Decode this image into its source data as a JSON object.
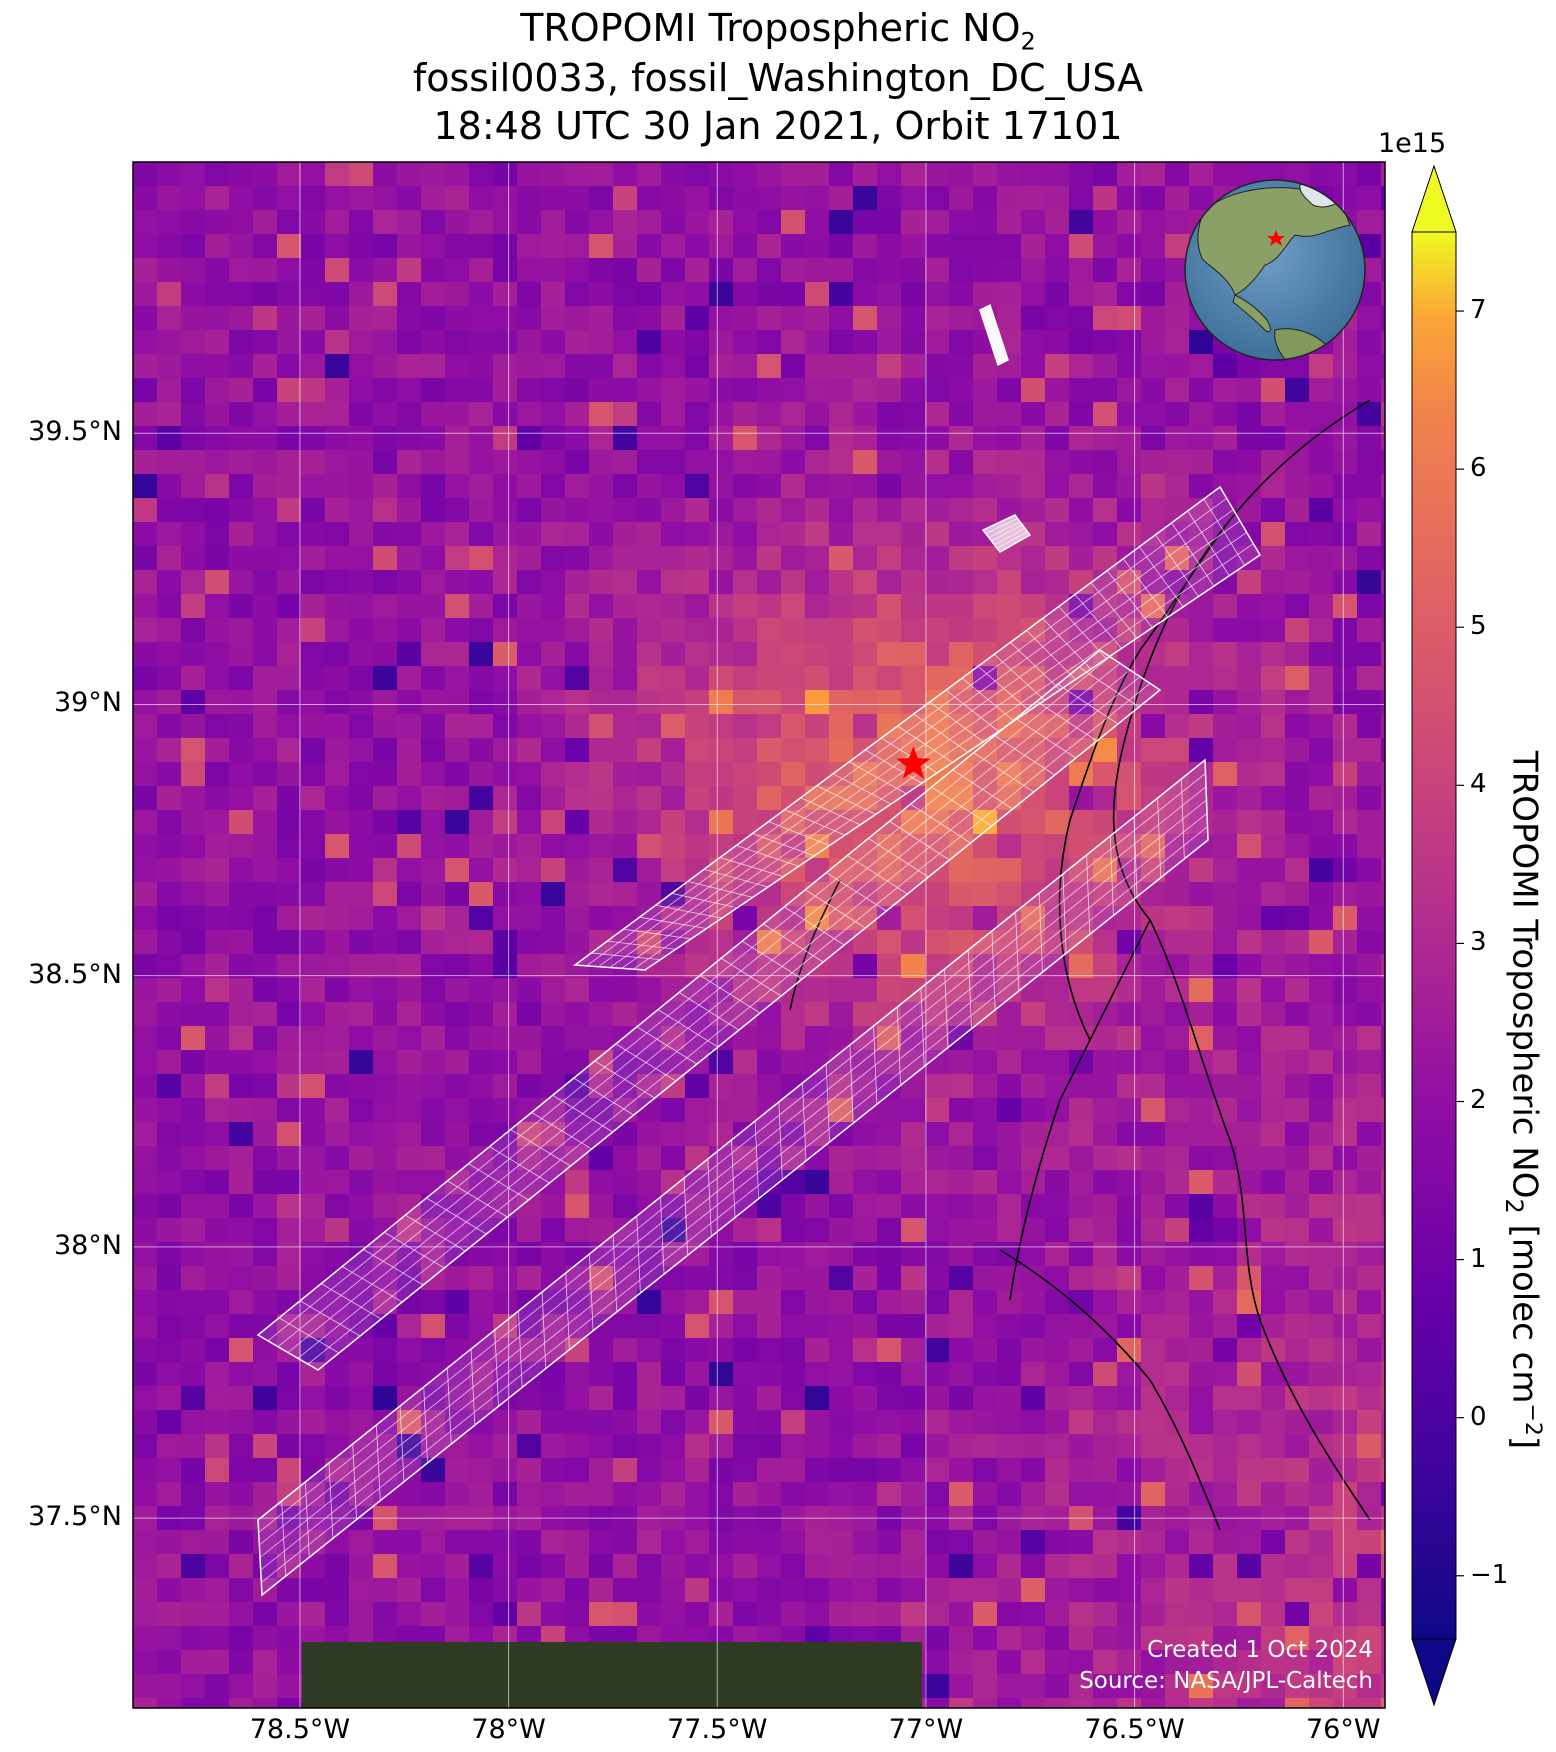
{
  "title": {
    "line1_prefix": "TROPOMI Tropospheric NO",
    "line1_sub": "2",
    "line2": "fossil0033, fossil_Washington_DC_USA",
    "line3": "18:48 UTC 30 Jan 2021, Orbit 17101"
  },
  "map": {
    "lon_range": [
      -78.9,
      -75.9
    ],
    "lat_range": [
      37.15,
      40.0
    ],
    "lat_ticks": [
      {
        "value": 39.5,
        "label": "39.5°N"
      },
      {
        "value": 39.0,
        "label": "39°N"
      },
      {
        "value": 38.5,
        "label": "38.5°N"
      },
      {
        "value": 38.0,
        "label": "38°N"
      },
      {
        "value": 37.5,
        "label": "37.5°N"
      }
    ],
    "lon_ticks": [
      {
        "value": -78.5,
        "label": "78.5°W"
      },
      {
        "value": -78.0,
        "label": "78°W"
      },
      {
        "value": -77.5,
        "label": "77.5°W"
      },
      {
        "value": -77.0,
        "label": "77°W"
      },
      {
        "value": -76.5,
        "label": "76.5°W"
      },
      {
        "value": -76.0,
        "label": "76°W"
      }
    ],
    "target": {
      "lon": -77.03,
      "lat": 38.89,
      "color": "#ff0000"
    },
    "colormap": "plasma"
  },
  "colorbar": {
    "multiplier": "1e15",
    "range": [
      -1.4,
      7.5
    ],
    "ticks": [
      {
        "value": -1,
        "label": "−1"
      },
      {
        "value": 0,
        "label": "0"
      },
      {
        "value": 1,
        "label": "1"
      },
      {
        "value": 2,
        "label": "2"
      },
      {
        "value": 3,
        "label": "3"
      },
      {
        "value": 4,
        "label": "4"
      },
      {
        "value": 5,
        "label": "5"
      },
      {
        "value": 6,
        "label": "6"
      },
      {
        "value": 7,
        "label": "7"
      }
    ],
    "label_prefix": "TROPOMI Tropospheric NO",
    "label_sub": "2",
    "label_mid": " [molec cm",
    "label_sup": "−2",
    "label_suffix": "]"
  },
  "credits": {
    "created": "Created 1 Oct 2024",
    "source": "Source: NASA/JPL-Caltech"
  }
}
